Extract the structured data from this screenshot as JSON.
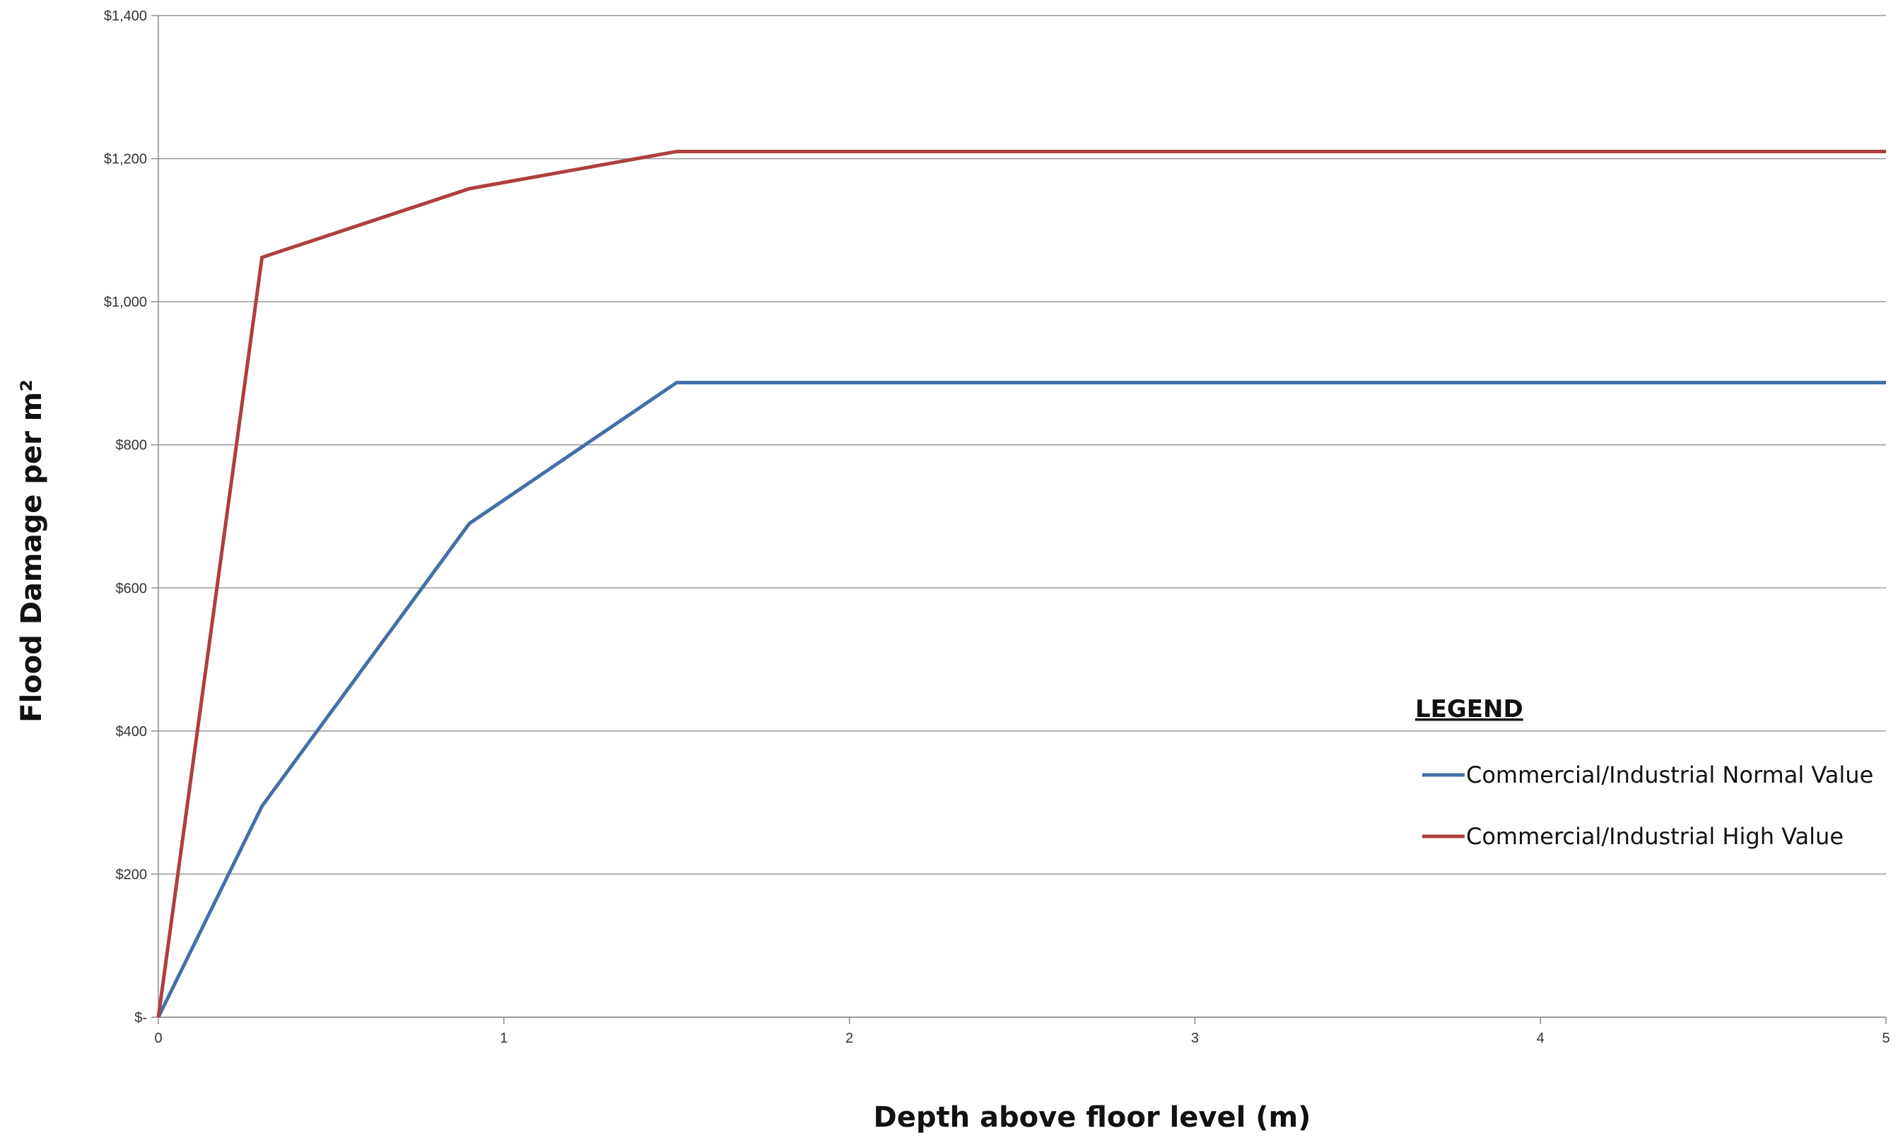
{
  "chart_data": {
    "type": "line",
    "xlabel": "Depth above floor level (m)",
    "ylabel": "Flood Damage per m²",
    "xlim": [
      0,
      5
    ],
    "ylim": [
      0,
      1400
    ],
    "x_ticks": [
      0,
      1,
      2,
      3,
      4,
      5
    ],
    "x_tick_labels": [
      "0",
      "1",
      "2",
      "3",
      "4",
      "5"
    ],
    "y_ticks": [
      0,
      200,
      400,
      600,
      800,
      1000,
      1200,
      1400
    ],
    "y_tick_labels": [
      "$-",
      "$200",
      "$400",
      "$600",
      "$800",
      "$1,000",
      "$1,200",
      "$1,400"
    ],
    "grid": "horizontal",
    "legend": {
      "title": "LEGEND",
      "placement": "right"
    },
    "series": [
      {
        "name": "Commercial/Industrial Normal Value",
        "color": "#4470A9",
        "x": [
          0,
          0.3,
          0.9,
          1.5,
          5
        ],
        "y": [
          0,
          295,
          690,
          887,
          887
        ]
      },
      {
        "name": "Commercial/Industrial High Value",
        "color": "#AF3F3F",
        "x": [
          0,
          0.3,
          0.9,
          1.5,
          5
        ],
        "y": [
          0,
          1062,
          1158,
          1210,
          1210
        ]
      }
    ]
  }
}
